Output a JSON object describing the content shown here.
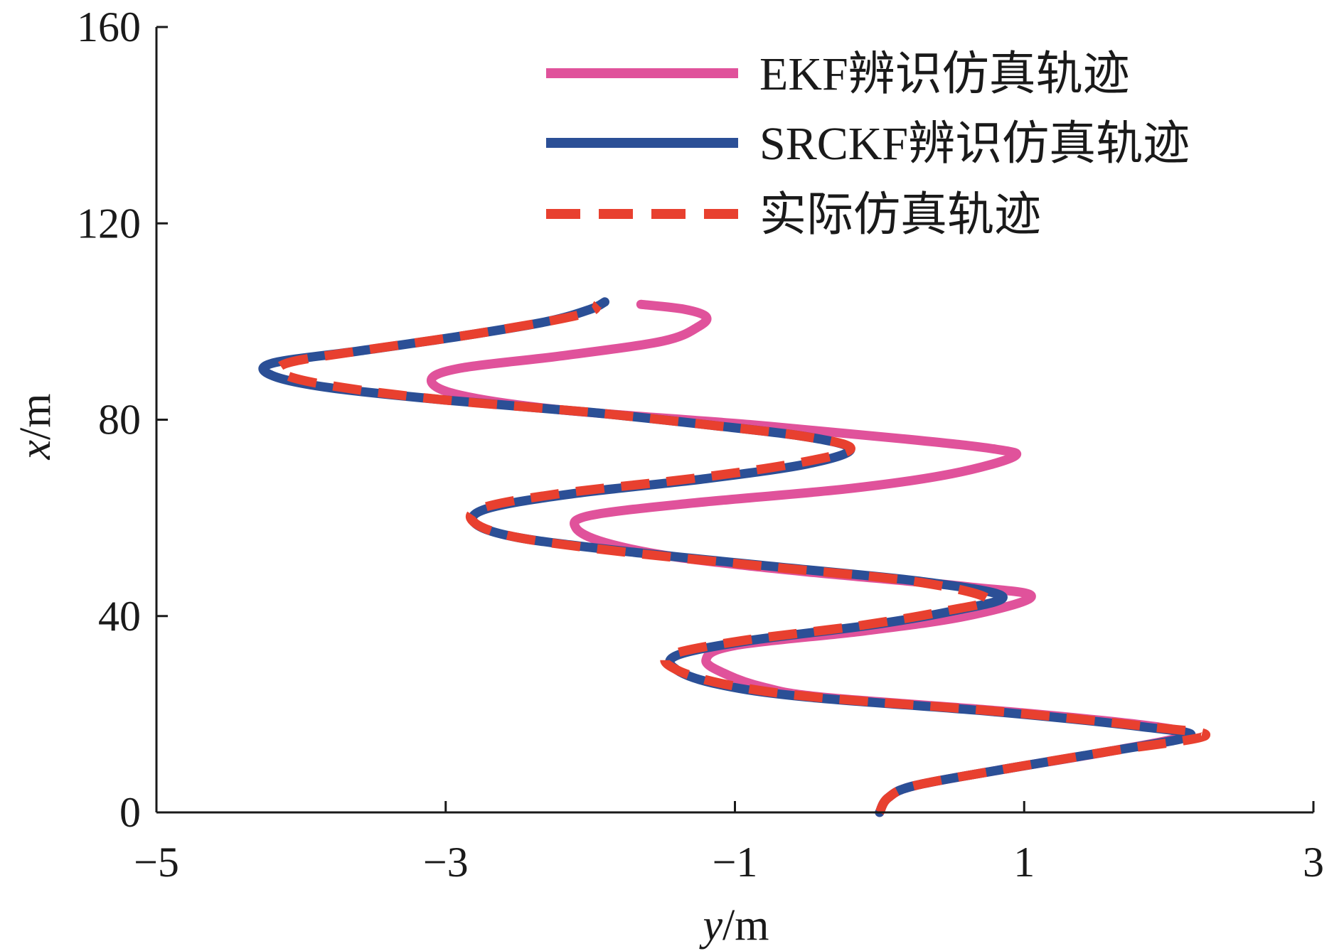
{
  "chart_data": {
    "type": "line",
    "xlabel_var": "y",
    "xlabel_unit": "/m",
    "ylabel_var": "x",
    "ylabel_unit": "/m",
    "xlim": [
      -5,
      3
    ],
    "ylim": [
      0,
      160
    ],
    "xticks": [
      -5,
      -3,
      -1,
      1,
      3
    ],
    "xtick_labels": [
      "−5",
      "−3",
      "−1",
      "1",
      "3"
    ],
    "yticks": [
      0,
      40,
      80,
      120,
      160
    ],
    "ytick_labels": [
      "0",
      "40",
      "80",
      "120",
      "160"
    ],
    "grid": false,
    "legend_position": "top-right",
    "series": [
      {
        "name": "EKF辨识仿真轨迹",
        "color": "#e0529b",
        "style": "solid",
        "points": [
          [
            0,
            0
          ],
          [
            0.06,
            3
          ],
          [
            0.25,
            5.5
          ],
          [
            0.9,
            9
          ],
          [
            1.6,
            12.5
          ],
          [
            2.1,
            15.6
          ],
          [
            1.9,
            17.5
          ],
          [
            0.9,
            20.5
          ],
          [
            -0.4,
            23.5
          ],
          [
            -0.8,
            25.5
          ],
          [
            -1.05,
            28
          ],
          [
            -1.2,
            31
          ],
          [
            -1.0,
            34
          ],
          [
            -0.1,
            37
          ],
          [
            0.6,
            40
          ],
          [
            1.05,
            44
          ],
          [
            0.6,
            46
          ],
          [
            -0.5,
            49
          ],
          [
            -1.4,
            52
          ],
          [
            -1.9,
            55
          ],
          [
            -2.1,
            58
          ],
          [
            -2.0,
            60.5
          ],
          [
            -1.3,
            63
          ],
          [
            -0.2,
            66
          ],
          [
            0.5,
            69
          ],
          [
            0.93,
            72.5
          ],
          [
            0.8,
            74
          ],
          [
            0.2,
            76
          ],
          [
            -0.9,
            79
          ],
          [
            -2.2,
            82
          ],
          [
            -2.9,
            85
          ],
          [
            -3.1,
            88
          ],
          [
            -2.9,
            90.5
          ],
          [
            -2.2,
            93
          ],
          [
            -1.5,
            96
          ],
          [
            -1.25,
            99
          ],
          [
            -1.2,
            101
          ],
          [
            -1.35,
            102.5
          ],
          [
            -1.65,
            103.5
          ]
        ]
      },
      {
        "name": "SRCKF辨识仿真轨迹",
        "color": "#2b4f96",
        "style": "solid",
        "points": [
          [
            0,
            0
          ],
          [
            0.06,
            3
          ],
          [
            0.25,
            5.5
          ],
          [
            0.9,
            9
          ],
          [
            1.6,
            12.5
          ],
          [
            2.15,
            15.6
          ],
          [
            1.8,
            17.5
          ],
          [
            0.8,
            20.5
          ],
          [
            -0.5,
            23.5
          ],
          [
            -1.1,
            26
          ],
          [
            -1.4,
            29
          ],
          [
            -1.4,
            32
          ],
          [
            -0.9,
            35
          ],
          [
            -0.1,
            38
          ],
          [
            0.5,
            41
          ],
          [
            0.85,
            44
          ],
          [
            0.3,
            47
          ],
          [
            -0.7,
            50
          ],
          [
            -1.7,
            53
          ],
          [
            -2.5,
            56
          ],
          [
            -2.8,
            59
          ],
          [
            -2.7,
            62
          ],
          [
            -2.1,
            65
          ],
          [
            -1.2,
            68
          ],
          [
            -0.5,
            71
          ],
          [
            -0.2,
            74
          ],
          [
            -0.5,
            76.5
          ],
          [
            -1.2,
            79
          ],
          [
            -2.0,
            81.5
          ],
          [
            -3.0,
            84
          ],
          [
            -3.8,
            86.5
          ],
          [
            -4.2,
            89
          ],
          [
            -4.2,
            91.5
          ],
          [
            -3.6,
            94
          ],
          [
            -2.9,
            97
          ],
          [
            -2.3,
            100
          ],
          [
            -2.0,
            102.5
          ],
          [
            -1.9,
            104
          ]
        ]
      },
      {
        "name": "实际仿真轨迹",
        "color": "#e8402f",
        "style": "dashed",
        "points": [
          [
            0,
            0
          ],
          [
            0.06,
            3
          ],
          [
            0.25,
            5.5
          ],
          [
            0.9,
            9
          ],
          [
            1.6,
            12.5
          ],
          [
            2.25,
            15.6
          ],
          [
            1.85,
            17.5
          ],
          [
            0.85,
            20.5
          ],
          [
            -0.45,
            23.5
          ],
          [
            -1.05,
            26
          ],
          [
            -1.4,
            29
          ],
          [
            -1.45,
            32
          ],
          [
            -0.95,
            35
          ],
          [
            -0.15,
            38
          ],
          [
            0.45,
            41
          ],
          [
            0.75,
            43.5
          ],
          [
            0.25,
            47
          ],
          [
            -0.75,
            50
          ],
          [
            -1.75,
            53
          ],
          [
            -2.5,
            56
          ],
          [
            -2.8,
            59
          ],
          [
            -2.75,
            62
          ],
          [
            -2.2,
            65
          ],
          [
            -1.3,
            68
          ],
          [
            -0.6,
            71
          ],
          [
            -0.2,
            74
          ],
          [
            -0.5,
            76.5
          ],
          [
            -1.2,
            79
          ],
          [
            -2.0,
            81.5
          ],
          [
            -3.0,
            84
          ],
          [
            -3.7,
            86.5
          ],
          [
            -4.1,
            89
          ],
          [
            -4.1,
            91.5
          ],
          [
            -3.6,
            94
          ],
          [
            -2.9,
            97
          ],
          [
            -2.3,
            100
          ],
          [
            -2.0,
            102
          ],
          [
            -1.95,
            103.5
          ]
        ]
      }
    ]
  }
}
